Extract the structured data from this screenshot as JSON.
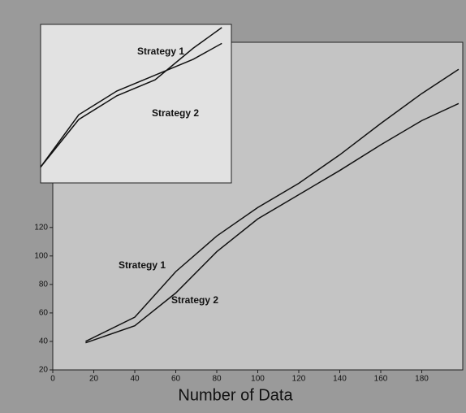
{
  "chart_data": [
    {
      "type": "line",
      "x_label": "Number of Data",
      "xlim": [
        0,
        200
      ],
      "xticks": [
        0,
        20,
        40,
        60,
        80,
        100,
        120,
        140,
        160,
        180
      ],
      "ylim": [
        20,
        250
      ],
      "yticks": [
        20,
        40,
        60,
        80,
        100,
        120
      ],
      "series": [
        {
          "name": "Strategy 1",
          "color": "#111111",
          "x": [
            16,
            40,
            60,
            80,
            100,
            120,
            140,
            160,
            180,
            198
          ],
          "values": [
            40,
            57,
            89,
            114,
            134,
            151,
            171,
            193,
            214,
            231
          ]
        },
        {
          "name": "Strategy 2",
          "color": "#111111",
          "x": [
            16,
            40,
            60,
            80,
            100,
            120,
            140,
            160,
            180,
            198
          ],
          "values": [
            39,
            51,
            74,
            103,
            126,
            143,
            160,
            178,
            195,
            207
          ]
        }
      ]
    },
    {
      "type": "line",
      "xlim": [
        0,
        100
      ],
      "ylim": [
        0,
        10
      ],
      "series": [
        {
          "name": "Strategy 1",
          "color": "#111111",
          "x": [
            0,
            20,
            40,
            60,
            80,
            95
          ],
          "values": [
            1,
            4,
            5.5,
            6.5,
            8.5,
            9.8
          ]
        },
        {
          "name": "Strategy 2",
          "color": "#111111",
          "x": [
            0,
            20,
            40,
            60,
            80,
            95
          ],
          "values": [
            1,
            4.3,
            5.8,
            6.8,
            7.8,
            8.8
          ]
        }
      ]
    }
  ]
}
